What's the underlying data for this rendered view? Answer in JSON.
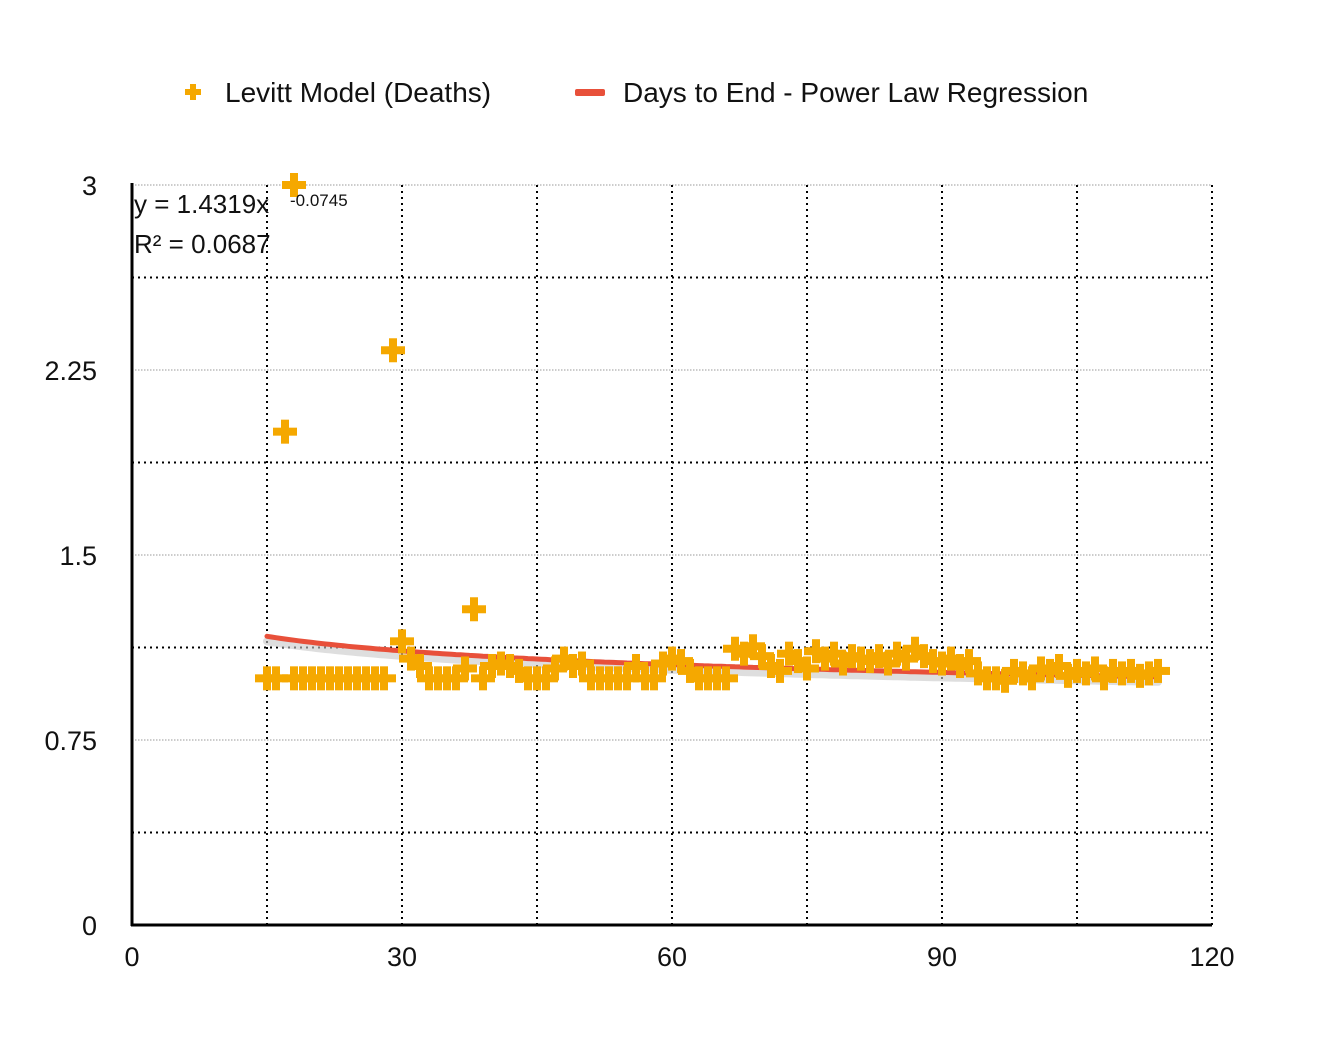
{
  "chart_data": {
    "type": "scatter",
    "title": "",
    "xlabel": "",
    "ylabel": "",
    "xlim": [
      0,
      120
    ],
    "ylim": [
      0,
      3
    ],
    "x_ticks": [
      0,
      30,
      60,
      90,
      120
    ],
    "x_tick_labels": [
      "0",
      "30",
      "60",
      "90",
      "120"
    ],
    "y_ticks": [
      0,
      0.75,
      1.5,
      2.25,
      3
    ],
    "y_tick_labels": [
      "0",
      "0.75",
      "1.5",
      "2.25",
      "3"
    ],
    "grid": true,
    "legend_position": "top",
    "series": [
      {
        "name": "Levitt Model (Deaths)",
        "kind": "scatter",
        "marker": "plus",
        "color": "#F5A800",
        "points": [
          [
            15,
            1.0
          ],
          [
            16,
            1.0
          ],
          [
            17,
            2.0
          ],
          [
            18,
            3.0
          ],
          [
            18,
            1.0
          ],
          [
            19,
            1.0
          ],
          [
            20,
            1.0
          ],
          [
            21,
            1.0
          ],
          [
            22,
            1.0
          ],
          [
            23,
            1.0
          ],
          [
            24,
            1.0
          ],
          [
            25,
            1.0
          ],
          [
            26,
            1.0
          ],
          [
            27,
            1.0
          ],
          [
            28,
            1.0
          ],
          [
            29,
            2.33
          ],
          [
            30,
            1.15
          ],
          [
            31,
            1.08
          ],
          [
            32,
            1.05
          ],
          [
            33,
            1.0
          ],
          [
            34,
            1.0
          ],
          [
            35,
            1.0
          ],
          [
            36,
            1.0
          ],
          [
            37,
            1.04
          ],
          [
            38,
            1.28
          ],
          [
            39,
            1.0
          ],
          [
            40,
            1.05
          ],
          [
            41,
            1.06
          ],
          [
            42,
            1.05
          ],
          [
            43,
            1.03
          ],
          [
            44,
            1.0
          ],
          [
            45,
            1.0
          ],
          [
            46,
            1.0
          ],
          [
            47,
            1.04
          ],
          [
            48,
            1.08
          ],
          [
            49,
            1.05
          ],
          [
            50,
            1.06
          ],
          [
            51,
            1.0
          ],
          [
            52,
            1.0
          ],
          [
            53,
            1.0
          ],
          [
            54,
            1.0
          ],
          [
            55,
            1.0
          ],
          [
            56,
            1.05
          ],
          [
            57,
            1.0
          ],
          [
            58,
            1.0
          ],
          [
            59,
            1.06
          ],
          [
            60,
            1.08
          ],
          [
            61,
            1.07
          ],
          [
            62,
            1.03
          ],
          [
            63,
            1.0
          ],
          [
            64,
            1.0
          ],
          [
            65,
            1.0
          ],
          [
            66,
            1.0
          ],
          [
            67,
            1.12
          ],
          [
            68,
            1.1
          ],
          [
            69,
            1.13
          ],
          [
            70,
            1.09
          ],
          [
            71,
            1.05
          ],
          [
            72,
            1.03
          ],
          [
            73,
            1.1
          ],
          [
            74,
            1.07
          ],
          [
            75,
            1.04
          ],
          [
            76,
            1.11
          ],
          [
            77,
            1.08
          ],
          [
            78,
            1.1
          ],
          [
            79,
            1.06
          ],
          [
            80,
            1.09
          ],
          [
            81,
            1.08
          ],
          [
            82,
            1.07
          ],
          [
            83,
            1.09
          ],
          [
            84,
            1.06
          ],
          [
            85,
            1.1
          ],
          [
            86,
            1.08
          ],
          [
            87,
            1.12
          ],
          [
            88,
            1.09
          ],
          [
            89,
            1.07
          ],
          [
            90,
            1.06
          ],
          [
            91,
            1.08
          ],
          [
            92,
            1.05
          ],
          [
            93,
            1.07
          ],
          [
            94,
            1.02
          ],
          [
            95,
            1.0
          ],
          [
            96,
            1.0
          ],
          [
            97,
            0.99
          ],
          [
            98,
            1.03
          ],
          [
            99,
            1.02
          ],
          [
            100,
            1.0
          ],
          [
            101,
            1.04
          ],
          [
            102,
            1.03
          ],
          [
            103,
            1.05
          ],
          [
            104,
            1.01
          ],
          [
            105,
            1.03
          ],
          [
            106,
            1.02
          ],
          [
            107,
            1.04
          ],
          [
            108,
            1.0
          ],
          [
            109,
            1.03
          ],
          [
            110,
            1.02
          ],
          [
            111,
            1.03
          ],
          [
            112,
            1.01
          ],
          [
            113,
            1.02
          ],
          [
            114,
            1.03
          ]
        ]
      },
      {
        "name": "Days to End - Power Law Regression",
        "kind": "line",
        "color": "#E8503A",
        "fit": {
          "model": "power",
          "a": 1.4319,
          "b": -0.0745,
          "x_range": [
            15,
            114
          ]
        }
      }
    ],
    "annotations": {
      "equation_prefix": "y = 1.4319x",
      "equation_exponent": "-0.0745",
      "r_squared": "R² = 0.0687"
    },
    "colors": {
      "scatter": "#F5A800",
      "regression": "#E8503A",
      "regression_shadow": "#C8C8C8",
      "axis": "#000000",
      "grid": "#000000"
    }
  }
}
